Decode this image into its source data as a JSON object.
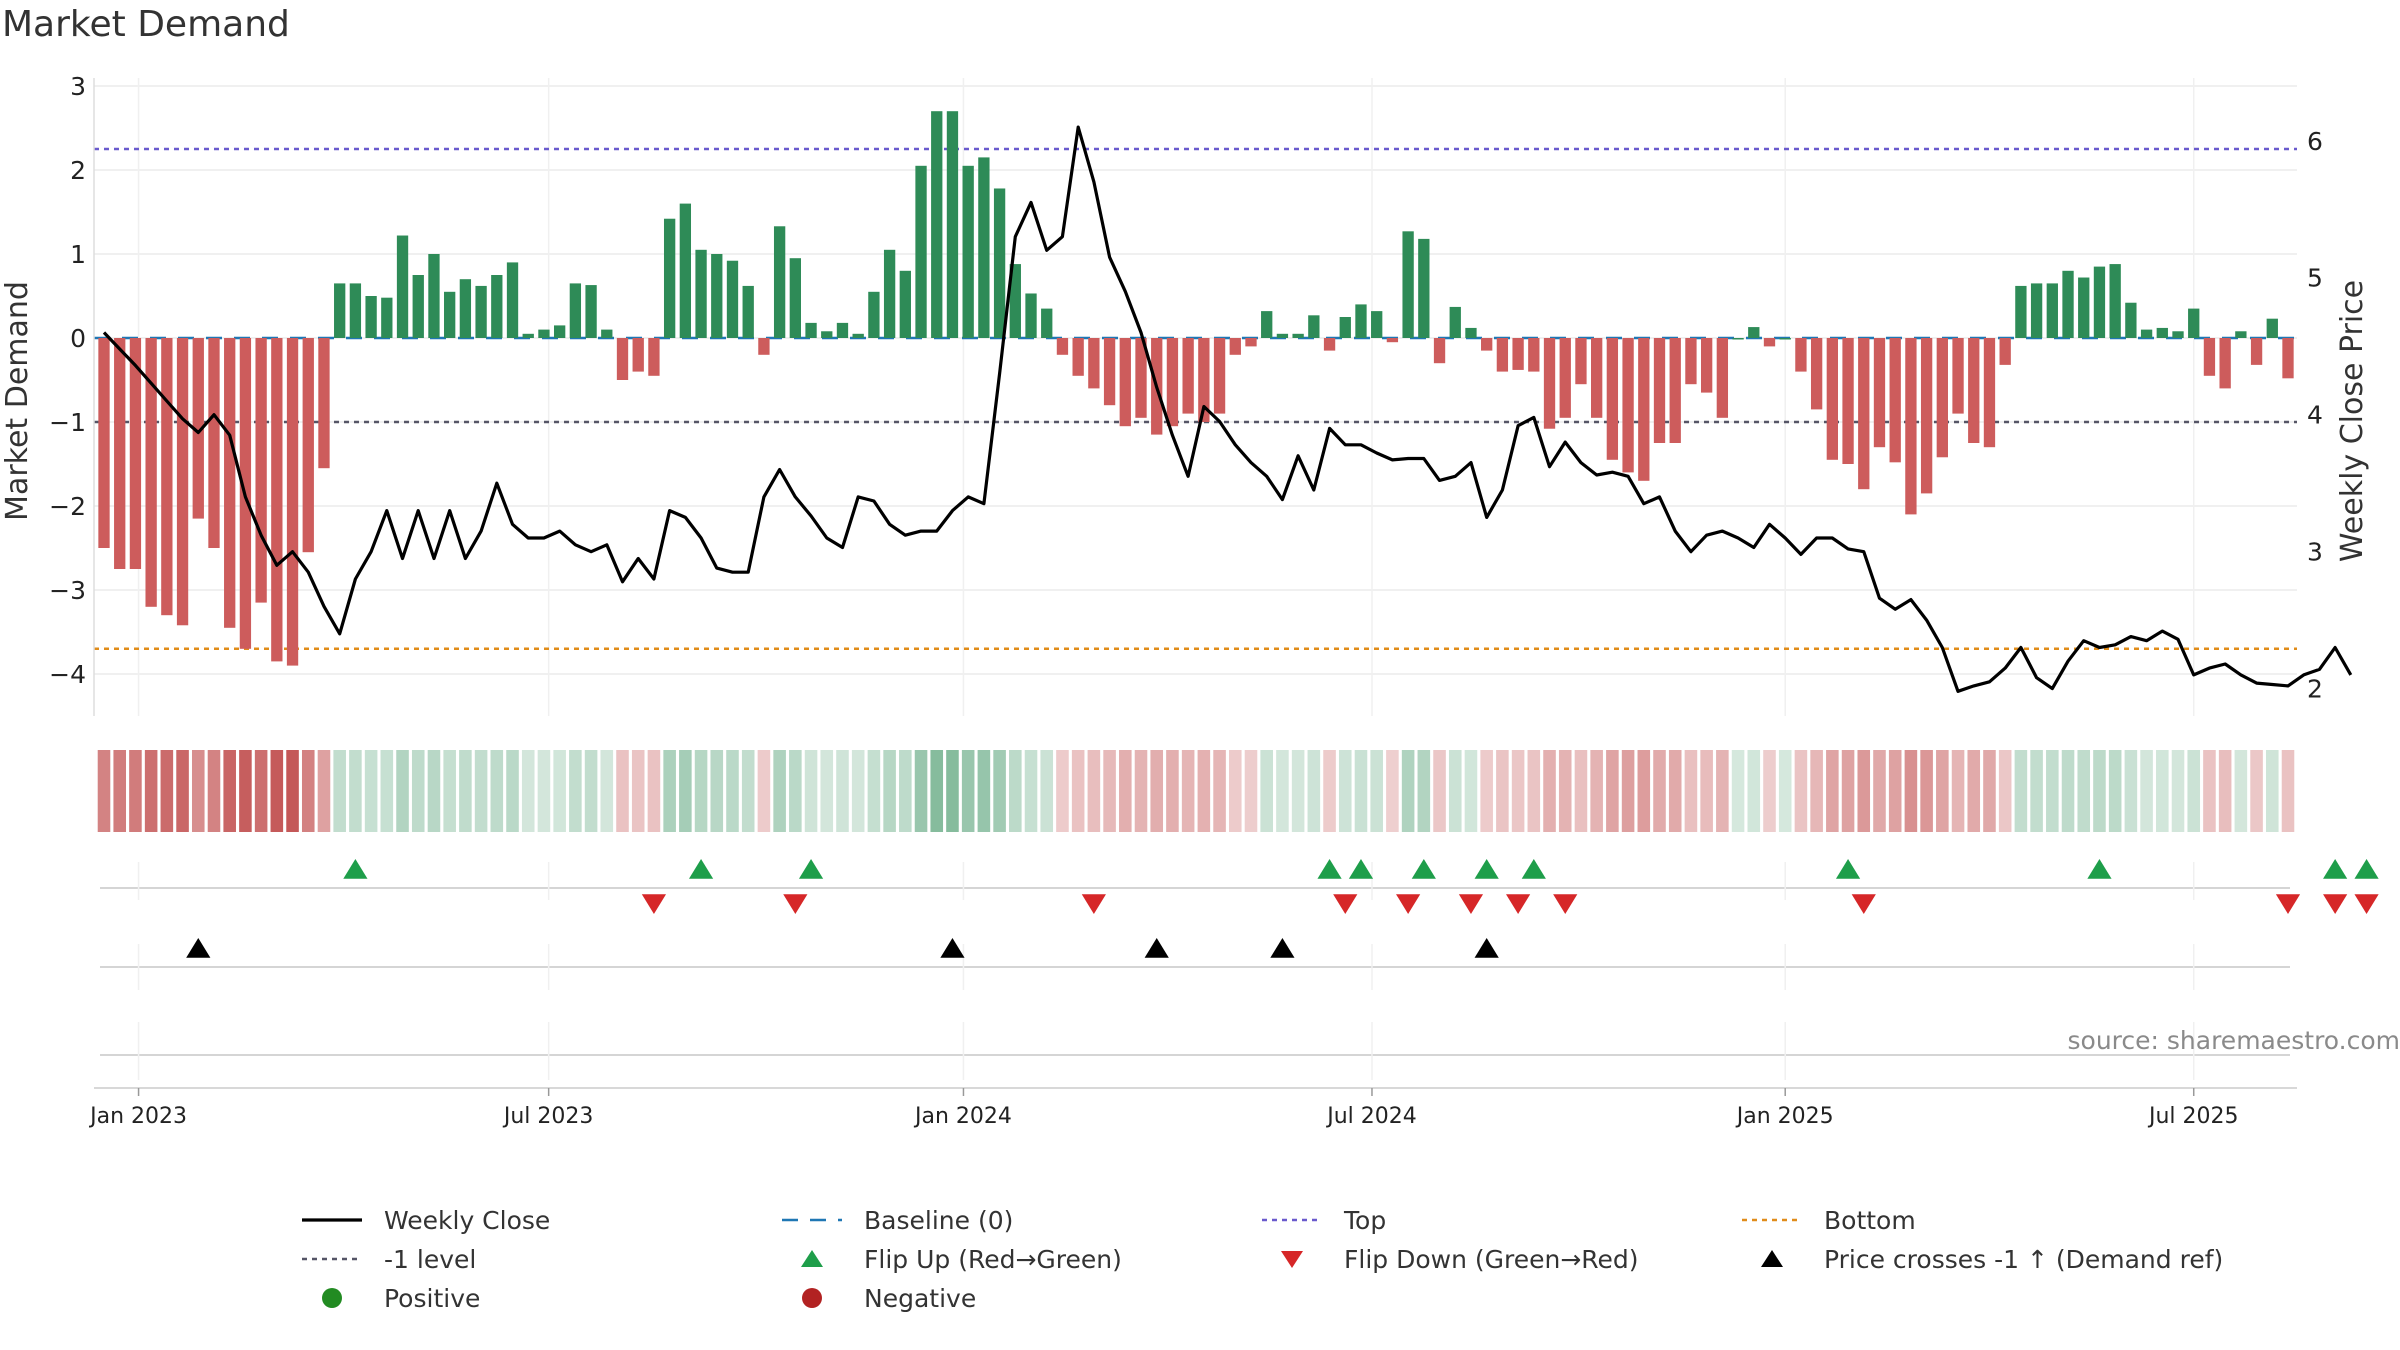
{
  "title": "Market Demand",
  "source": "source: sharemaestro.com",
  "colors": {
    "positive": "#2e8b57",
    "negative": "#cd5c5c",
    "price_line": "#000000",
    "top_line": "#6a5acd",
    "bottom_line": "#e08c1a",
    "minus_one_line": "#555566",
    "flip_up": "#1e9e4a",
    "flip_down": "#d62728",
    "cross": "#000000"
  },
  "chart_data": {
    "type": "bar",
    "title": "Market Demand",
    "ylabel": "Market Demand",
    "y2label": "Weekly Close Price",
    "ylim": [
      -4.5,
      3.0
    ],
    "y2lim": [
      1.8,
      6.4
    ],
    "yticks": [
      3,
      2,
      1,
      0,
      -1,
      -2,
      -3,
      -4
    ],
    "y2ticks": [
      6,
      5,
      4,
      3,
      2
    ],
    "ytick_labels": [
      "3",
      "2",
      "1",
      "0",
      "−1",
      "−2",
      "−3",
      "−4"
    ],
    "y2tick_labels": [
      "6",
      "5",
      "4",
      "3",
      "2"
    ],
    "x_start": "2022-12-16",
    "xticks": [
      {
        "label": "Jan 2023",
        "week": 2.2
      },
      {
        "label": "Jul 2023",
        "week": 28.3
      },
      {
        "label": "Jan 2024",
        "week": 54.7
      },
      {
        "label": "Jul 2024",
        "week": 80.7
      },
      {
        "label": "Jan 2025",
        "week": 107.0
      },
      {
        "label": "Jul 2025",
        "week": 133.0
      }
    ],
    "reference_lines": {
      "top": 2.25,
      "bottom": -3.7,
      "minus_one": -1.0,
      "baseline": 0
    },
    "demand": [
      -2.5,
      -2.75,
      -2.75,
      -3.2,
      -3.3,
      -3.42,
      -2.15,
      -2.5,
      -3.45,
      -3.7,
      -3.15,
      -3.85,
      -3.9,
      -2.55,
      -1.55,
      0.65,
      0.65,
      0.5,
      0.48,
      1.22,
      0.75,
      1.0,
      0.55,
      0.7,
      0.62,
      0.75,
      0.9,
      0.05,
      0.1,
      0.15,
      0.65,
      0.63,
      0.1,
      -0.5,
      -0.4,
      -0.45,
      1.42,
      1.6,
      1.05,
      1.0,
      0.92,
      0.62,
      -0.2,
      1.33,
      0.95,
      0.18,
      0.08,
      0.18,
      0.05,
      0.55,
      1.05,
      0.8,
      2.05,
      2.7,
      2.7,
      2.05,
      2.15,
      1.78,
      0.88,
      0.53,
      0.35,
      -0.2,
      -0.45,
      -0.6,
      -0.8,
      -1.05,
      -0.95,
      -1.15,
      -1.05,
      -0.9,
      -1.0,
      -0.9,
      -0.2,
      -0.1,
      0.32,
      0.05,
      0.05,
      0.27,
      -0.15,
      0.25,
      0.4,
      0.32,
      -0.05,
      1.27,
      1.18,
      -0.3,
      0.37,
      0.12,
      -0.15,
      -0.4,
      -0.38,
      -0.4,
      -1.08,
      -0.95,
      -0.55,
      -0.95,
      -1.45,
      -1.6,
      -1.7,
      -1.25,
      -1.25,
      -0.55,
      -0.65,
      -0.95,
      0.0,
      0.13,
      -0.1,
      0.0,
      -0.4,
      -0.85,
      -1.45,
      -1.5,
      -1.8,
      -1.3,
      -1.48,
      -2.1,
      -1.85,
      -1.42,
      -0.9,
      -1.25,
      -1.3,
      -0.32,
      0.62,
      0.65,
      0.65,
      0.8,
      0.72,
      0.85,
      0.88,
      0.42,
      0.1,
      0.12,
      0.08,
      0.35,
      -0.45,
      -0.6,
      0.08,
      -0.32,
      0.23,
      -0.48
    ],
    "close": [
      4.6,
      4.48,
      4.36,
      4.23,
      4.1,
      3.97,
      3.87,
      4.0,
      3.85,
      3.4,
      3.12,
      2.9,
      3.0,
      2.85,
      2.6,
      2.4,
      2.8,
      3.0,
      3.3,
      2.95,
      3.3,
      2.95,
      3.3,
      2.95,
      3.15,
      3.5,
      3.2,
      3.1,
      3.1,
      3.15,
      3.05,
      3.0,
      3.05,
      2.78,
      2.95,
      2.8,
      3.3,
      3.25,
      3.1,
      2.88,
      2.85,
      2.85,
      3.4,
      3.6,
      3.4,
      3.26,
      3.1,
      3.03,
      3.4,
      3.37,
      3.2,
      3.12,
      3.15,
      3.15,
      3.3,
      3.4,
      3.35,
      4.3,
      5.3,
      5.55,
      5.2,
      5.3,
      6.1,
      5.7,
      5.15,
      4.9,
      4.6,
      4.2,
      3.85,
      3.55,
      4.06,
      3.95,
      3.78,
      3.65,
      3.55,
      3.38,
      3.7,
      3.45,
      3.9,
      3.78,
      3.78,
      3.72,
      3.67,
      3.68,
      3.68,
      3.52,
      3.55,
      3.65,
      3.25,
      3.45,
      3.92,
      3.98,
      3.62,
      3.8,
      3.65,
      3.56,
      3.58,
      3.55,
      3.35,
      3.4,
      3.15,
      3.0,
      3.12,
      3.15,
      3.1,
      3.03,
      3.2,
      3.1,
      2.98,
      3.1,
      3.1,
      3.02,
      3.0,
      2.66,
      2.58,
      2.65,
      2.5,
      2.3,
      1.98,
      2.02,
      2.05,
      2.15,
      2.3,
      2.08,
      2.0,
      2.2,
      2.35,
      2.3,
      2.32,
      2.38,
      2.35,
      2.42,
      2.36,
      2.1,
      2.15,
      2.18,
      2.1,
      2.04,
      2.03,
      2.02,
      2.1,
      2.14,
      2.3,
      2.1
    ],
    "flip_up_weeks": [
      16,
      38,
      45,
      78,
      80,
      84,
      88,
      91,
      111,
      127,
      142,
      144
    ],
    "flip_down_weeks": [
      35,
      44,
      63,
      79,
      83,
      87,
      90,
      93,
      112,
      139,
      142,
      144
    ],
    "price_cross_weeks": [
      6,
      54,
      67,
      75,
      88
    ]
  },
  "legend": [
    {
      "label": "Weekly Close",
      "symbol": "solid-line",
      "color": "#000000"
    },
    {
      "label": "Baseline (0)",
      "symbol": "dashed-line",
      "color": "#1f77b4"
    },
    {
      "label": "Top",
      "symbol": "dotted-line",
      "color": "#6a5acd"
    },
    {
      "label": "Bottom",
      "symbol": "dotted-line",
      "color": "#e08c1a"
    },
    {
      "label": "-1 level",
      "symbol": "dotted-line",
      "color": "#555566"
    },
    {
      "label": "Flip Up (Red→Green)",
      "symbol": "triangle-up",
      "color": "#1e9e4a"
    },
    {
      "label": "Flip Down (Green→Red)",
      "symbol": "triangle-down",
      "color": "#d62728"
    },
    {
      "label": "Price crosses -1 ↑ (Demand ref)",
      "symbol": "triangle-up",
      "color": "#000000"
    },
    {
      "label": "Positive",
      "symbol": "circle",
      "color": "#228b22"
    },
    {
      "label": "Negative",
      "symbol": "circle",
      "color": "#b22222"
    }
  ]
}
